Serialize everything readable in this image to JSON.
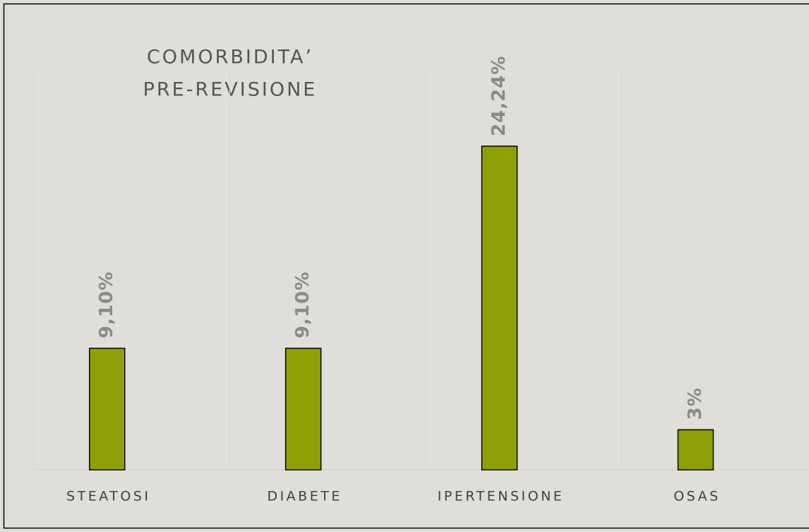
{
  "chart_data": {
    "type": "bar",
    "title": [
      "COMORBIDITA’",
      "PRE-REVISIONE"
    ],
    "categories": [
      "STEATOSI",
      "DIABETE",
      "IPERTENSIONE",
      "OSAS"
    ],
    "values": [
      9.1,
      9.1,
      24.24,
      3
    ],
    "value_labels": [
      "9,10%",
      "9,10%",
      "24,24%",
      "3%"
    ],
    "color": "#8fa006",
    "ylim": [
      0,
      30
    ]
  }
}
